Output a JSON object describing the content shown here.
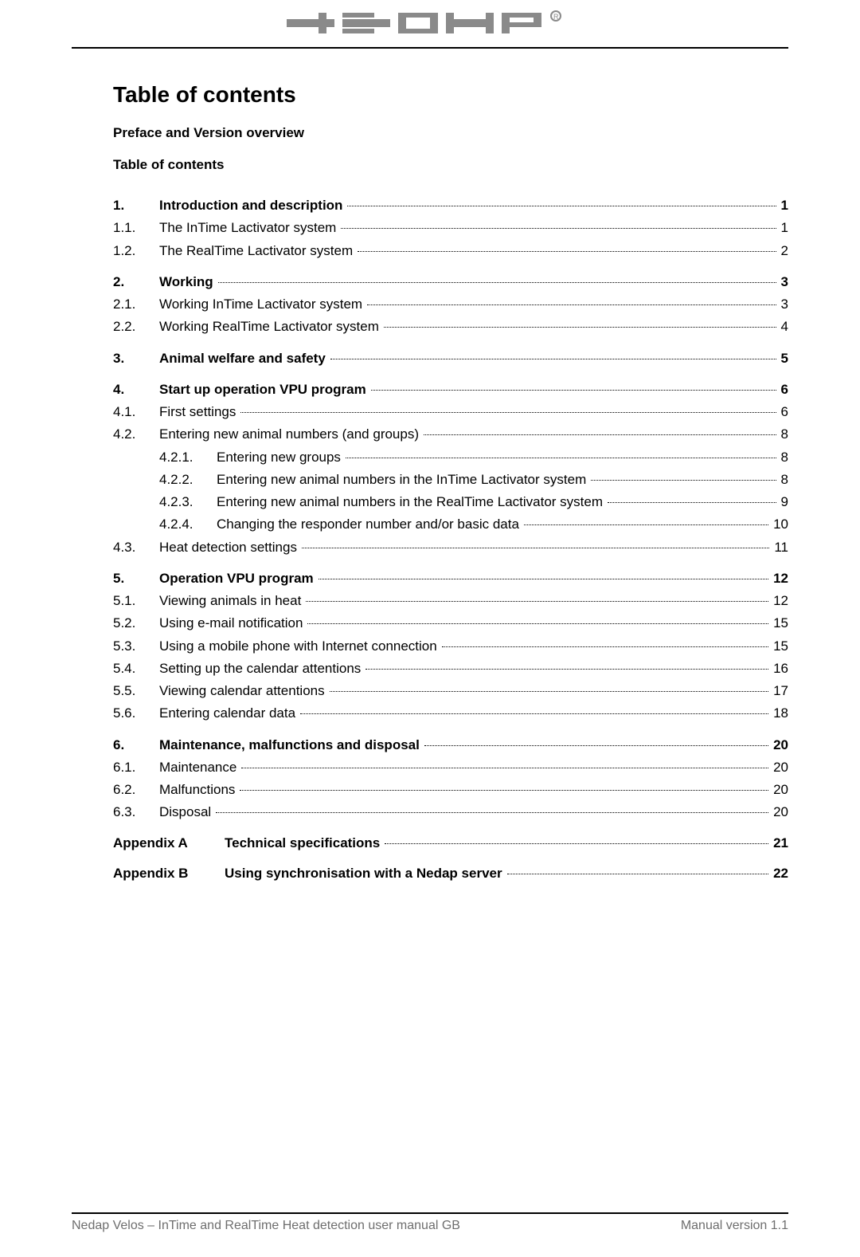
{
  "brand": "nedap",
  "title": "Table of contents",
  "pre_heading_1": "Preface and Version overview",
  "pre_heading_2": "Table of contents",
  "toc": [
    {
      "num": "1.",
      "text": "Introduction and description",
      "page": "1",
      "bold": true,
      "lvl": 1
    },
    {
      "num": "1.1.",
      "text": "The InTime Lactivator system",
      "page": "1",
      "bold": false,
      "lvl": 1
    },
    {
      "num": "1.2.",
      "text": "The RealTime Lactivator system",
      "page": "2",
      "bold": false,
      "lvl": 1
    },
    {
      "num": "2.",
      "text": "Working",
      "page": "3",
      "bold": true,
      "lvl": 1
    },
    {
      "num": "2.1.",
      "text": "Working InTime Lactivator system",
      "page": "3",
      "bold": false,
      "lvl": 1
    },
    {
      "num": "2.2.",
      "text": "Working RealTime Lactivator system",
      "page": "4",
      "bold": false,
      "lvl": 1
    },
    {
      "num": "3.",
      "text": "Animal welfare and safety",
      "page": "5",
      "bold": true,
      "lvl": 1
    },
    {
      "num": "4.",
      "text": "Start up operation VPU program",
      "page": "6",
      "bold": true,
      "lvl": 1
    },
    {
      "num": "4.1.",
      "text": "First settings",
      "page": "6",
      "bold": false,
      "lvl": 1
    },
    {
      "num": "4.2.",
      "text": "Entering new animal numbers (and groups)",
      "page": "8",
      "bold": false,
      "lvl": 1
    },
    {
      "num": "4.2.1.",
      "text": "Entering new groups",
      "page": "8",
      "bold": false,
      "lvl": 3
    },
    {
      "num": "4.2.2.",
      "text": "Entering new animal numbers in the InTime Lactivator system",
      "page": "8",
      "bold": false,
      "lvl": 3
    },
    {
      "num": "4.2.3.",
      "text": "Entering new animal numbers in the RealTime Lactivator system",
      "page": "9",
      "bold": false,
      "lvl": 3
    },
    {
      "num": "4.2.4.",
      "text": "Changing the responder number and/or basic data",
      "page": "10",
      "bold": false,
      "lvl": 3
    },
    {
      "num": "4.3.",
      "text": "Heat detection settings",
      "page": "11",
      "bold": false,
      "lvl": 1
    },
    {
      "num": "5.",
      "text": "Operation VPU program",
      "page": "12",
      "bold": true,
      "lvl": 1
    },
    {
      "num": "5.1.",
      "text": "Viewing animals in heat",
      "page": "12",
      "bold": false,
      "lvl": 1
    },
    {
      "num": "5.2.",
      "text": "Using e-mail notification",
      "page": "15",
      "bold": false,
      "lvl": 1
    },
    {
      "num": "5.3.",
      "text": "Using a mobile phone with Internet connection",
      "page": "15",
      "bold": false,
      "lvl": 1
    },
    {
      "num": "5.4.",
      "text": "Setting up the calendar attentions",
      "page": "16",
      "bold": false,
      "lvl": 1
    },
    {
      "num": "5.5.",
      "text": "Viewing calendar attentions",
      "page": "17",
      "bold": false,
      "lvl": 1
    },
    {
      "num": "5.6.",
      "text": "Entering calendar data",
      "page": "18",
      "bold": false,
      "lvl": 1
    },
    {
      "num": "6.",
      "text": "Maintenance, malfunctions and disposal",
      "page": "20",
      "bold": true,
      "lvl": 1
    },
    {
      "num": "6.1.",
      "text": "Maintenance",
      "page": "20",
      "bold": false,
      "lvl": 1
    },
    {
      "num": "6.2.",
      "text": "Malfunctions",
      "page": "20",
      "bold": false,
      "lvl": 1
    },
    {
      "num": "6.3.",
      "text": "Disposal",
      "page": "20",
      "bold": false,
      "lvl": 1
    }
  ],
  "appendices": [
    {
      "label": "Appendix A",
      "text": "Technical specifications",
      "page": "21"
    },
    {
      "label": "Appendix B",
      "text": "Using synchronisation with a Nedap server",
      "page": "22"
    }
  ],
  "footer_left": "Nedap Velos – InTime and RealTime Heat detection user manual GB",
  "footer_right": "Manual version 1.1",
  "colors": {
    "text": "#000000",
    "footer_text": "#6e6e6e",
    "rule": "#000000",
    "logo": "#8a8a8a"
  }
}
